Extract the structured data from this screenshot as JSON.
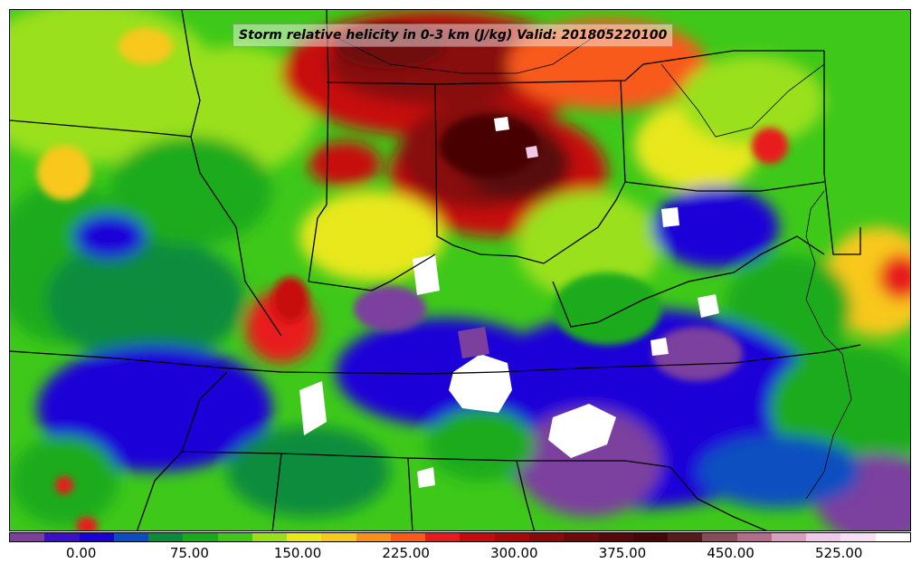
{
  "map": {
    "title": "Storm relative helicity in 0-3 km (J/kg) Valid: 201805220100",
    "field": "storm-relative-helicity-0-3km",
    "valid_time": "201805220100"
  },
  "colorbar": {
    "min": -50,
    "max": 575,
    "step": 25,
    "colors": [
      "#7b3f9e",
      "#3a10c8",
      "#1a00d8",
      "#0a4fc0",
      "#0a8c3c",
      "#1aab1a",
      "#3ec81a",
      "#9ae01a",
      "#e8e81a",
      "#f8c81a",
      "#f8901a",
      "#f85a1a",
      "#e81a1a",
      "#c80a0a",
      "#a80a0a",
      "#880a0a",
      "#700a0a",
      "#580808",
      "#4a0606",
      "#5a1a1a",
      "#8a4a5a",
      "#b86a8a",
      "#d8a0c0",
      "#f0c8e8",
      "#f8e0f4",
      "#ffffff"
    ],
    "ticks": [
      "0.00",
      "75.00",
      "150.00",
      "225.00",
      "300.00",
      "375.00",
      "450.00",
      "525.00"
    ],
    "tick_values": [
      0,
      75,
      150,
      225,
      300,
      375,
      450,
      525
    ]
  }
}
